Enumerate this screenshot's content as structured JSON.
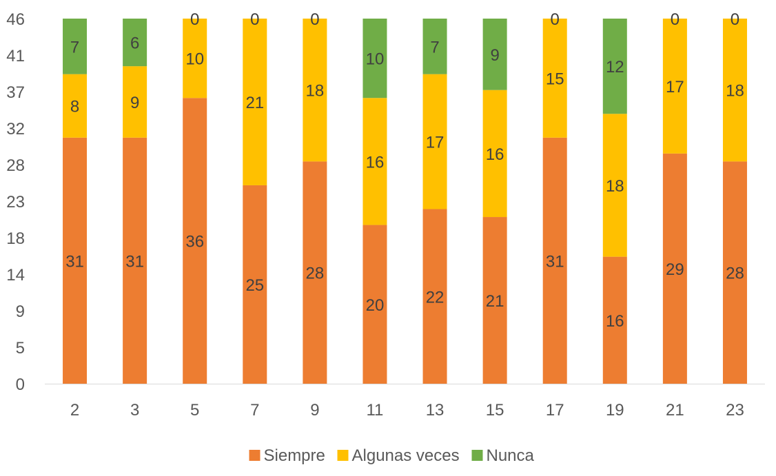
{
  "chart_data": {
    "type": "bar",
    "stacked": true,
    "categories": [
      "2",
      "3",
      "5",
      "7",
      "9",
      "11",
      "13",
      "15",
      "17",
      "19",
      "21",
      "23"
    ],
    "series": [
      {
        "name": "Siempre",
        "color": "#ED7D31",
        "values": [
          31,
          31,
          36,
          25,
          28,
          20,
          22,
          21,
          31,
          16,
          29,
          28
        ]
      },
      {
        "name": "Algunas veces",
        "color": "#FFC000",
        "values": [
          8,
          9,
          10,
          21,
          18,
          16,
          17,
          16,
          15,
          18,
          17,
          18
        ]
      },
      {
        "name": "Nunca",
        "color": "#70AD47",
        "values": [
          7,
          6,
          0,
          0,
          0,
          10,
          7,
          9,
          0,
          12,
          0,
          0
        ]
      }
    ],
    "y_ticks": [
      "0",
      "5",
      "9",
      "14",
      "18",
      "23",
      "28",
      "32",
      "37",
      "41",
      "46"
    ],
    "ylim": [
      0,
      46
    ],
    "grid": false,
    "legend_position": "bottom"
  }
}
